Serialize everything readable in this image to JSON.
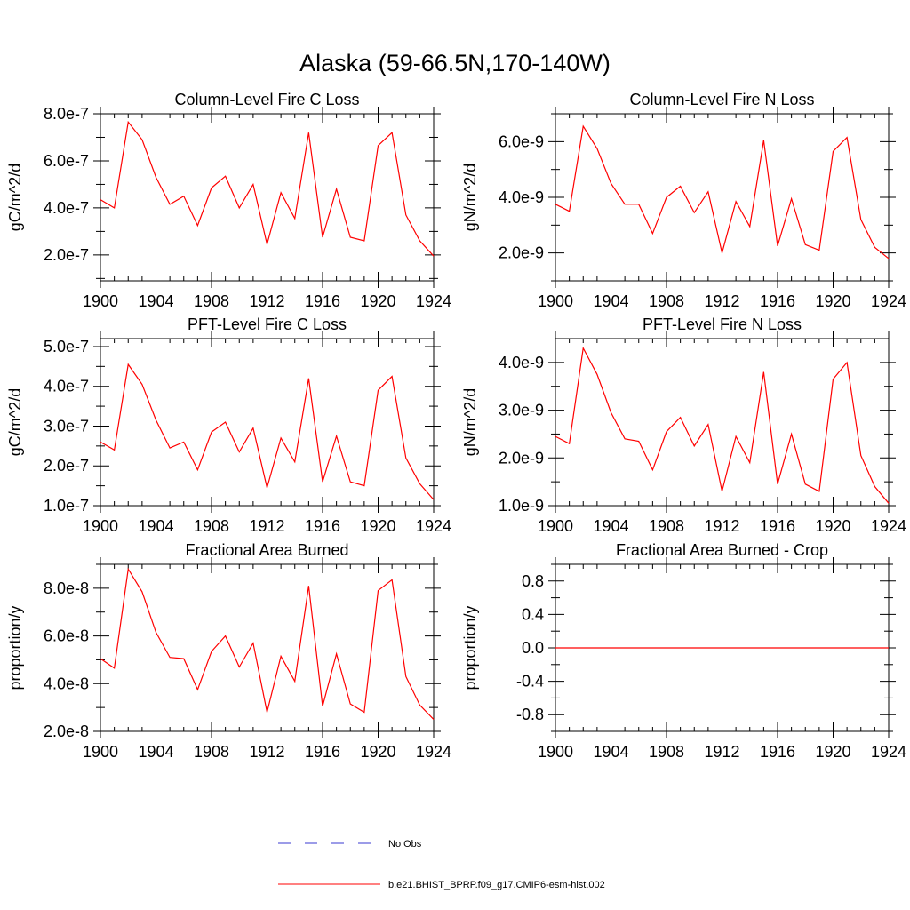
{
  "title": "Alaska (59-66.5N,170-140W)",
  "colors": {
    "series": "#ff0000",
    "obs": "#3a3ad0",
    "axis": "#000000"
  },
  "chart_data": [
    {
      "type": "line",
      "title": "Column-Level Fire C Loss",
      "ylabel": "gC/m^2/d",
      "xlabel": "",
      "xlim": [
        1900,
        1924
      ],
      "ylim": [
        9e-08,
        8e-07
      ],
      "xticks": [
        1900,
        1904,
        1908,
        1912,
        1916,
        1920,
        1924
      ],
      "xtick_labels": [
        "1900",
        "1904",
        "1908",
        "1912",
        "1916",
        "1920",
        "1924"
      ],
      "yticks": [
        2e-07,
        4e-07,
        6e-07,
        8e-07
      ],
      "ytick_labels": [
        "2.0e-7",
        "4.0e-7",
        "6.0e-7",
        "8.0e-7"
      ],
      "yminor": [
        1e-07,
        3e-07,
        5e-07,
        7e-07
      ],
      "x": [
        1900,
        1901,
        1902,
        1903,
        1904,
        1905,
        1906,
        1907,
        1908,
        1909,
        1910,
        1911,
        1912,
        1913,
        1914,
        1915,
        1916,
        1917,
        1918,
        1919,
        1920,
        1921,
        1922,
        1923,
        1924
      ],
      "values": [
        4.35e-07,
        4e-07,
        7.65e-07,
        6.9e-07,
        5.3e-07,
        4.15e-07,
        4.5e-07,
        3.25e-07,
        4.85e-07,
        5.35e-07,
        4e-07,
        5e-07,
        2.45e-07,
        4.65e-07,
        3.55e-07,
        7.2e-07,
        2.75e-07,
        4.8e-07,
        2.75e-07,
        2.6e-07,
        6.65e-07,
        7.2e-07,
        3.7e-07,
        2.6e-07,
        1.95e-07
      ]
    },
    {
      "type": "line",
      "title": "Column-Level Fire N Loss",
      "ylabel": "gN/m^2/d",
      "xlabel": "",
      "xlim": [
        1900,
        1924
      ],
      "ylim": [
        1e-09,
        7e-09
      ],
      "xticks": [
        1900,
        1904,
        1908,
        1912,
        1916,
        1920,
        1924
      ],
      "xtick_labels": [
        "1900",
        "1904",
        "1908",
        "1912",
        "1916",
        "1920",
        "1924"
      ],
      "yticks": [
        2e-09,
        4e-09,
        6e-09
      ],
      "ytick_labels": [
        "2.0e-9",
        "4.0e-9",
        "6.0e-9"
      ],
      "yminor": [
        1e-09,
        3e-09,
        5e-09,
        7e-09
      ],
      "x": [
        1900,
        1901,
        1902,
        1903,
        1904,
        1905,
        1906,
        1907,
        1908,
        1909,
        1910,
        1911,
        1912,
        1913,
        1914,
        1915,
        1916,
        1917,
        1918,
        1919,
        1920,
        1921,
        1922,
        1923,
        1924
      ],
      "values": [
        3.75e-09,
        3.5e-09,
        6.55e-09,
        5.75e-09,
        4.5e-09,
        3.75e-09,
        3.75e-09,
        2.7e-09,
        4e-09,
        4.4e-09,
        3.45e-09,
        4.2e-09,
        2e-09,
        3.85e-09,
        2.95e-09,
        6.05e-09,
        2.25e-09,
        3.95e-09,
        2.3e-09,
        2.1e-09,
        5.65e-09,
        6.15e-09,
        3.2e-09,
        2.2e-09,
        1.8e-09
      ]
    },
    {
      "type": "line",
      "title": "PFT-Level Fire C Loss",
      "ylabel": "gC/m^2/d",
      "xlabel": "",
      "xlim": [
        1900,
        1924
      ],
      "ylim": [
        1e-07,
        5.2e-07
      ],
      "xticks": [
        1900,
        1904,
        1908,
        1912,
        1916,
        1920,
        1924
      ],
      "xtick_labels": [
        "1900",
        "1904",
        "1908",
        "1912",
        "1916",
        "1920",
        "1924"
      ],
      "yticks": [
        1e-07,
        2e-07,
        3e-07,
        4e-07,
        5e-07
      ],
      "ytick_labels": [
        "1.0e-7",
        "2.0e-7",
        "3.0e-7",
        "4.0e-7",
        "5.0e-7"
      ],
      "yminor": [
        1.5e-07,
        2.5e-07,
        3.5e-07,
        4.5e-07
      ],
      "x": [
        1900,
        1901,
        1902,
        1903,
        1904,
        1905,
        1906,
        1907,
        1908,
        1909,
        1910,
        1911,
        1912,
        1913,
        1914,
        1915,
        1916,
        1917,
        1918,
        1919,
        1920,
        1921,
        1922,
        1923,
        1924
      ],
      "values": [
        2.6e-07,
        2.4e-07,
        4.55e-07,
        4.05e-07,
        3.15e-07,
        2.45e-07,
        2.6e-07,
        1.9e-07,
        2.85e-07,
        3.1e-07,
        2.35e-07,
        2.95e-07,
        1.45e-07,
        2.7e-07,
        2.1e-07,
        4.2e-07,
        1.6e-07,
        2.75e-07,
        1.6e-07,
        1.5e-07,
        3.9e-07,
        4.25e-07,
        2.2e-07,
        1.55e-07,
        1.15e-07
      ]
    },
    {
      "type": "line",
      "title": "PFT-Level Fire N Loss",
      "ylabel": "gN/m^2/d",
      "xlabel": "",
      "xlim": [
        1900,
        1924
      ],
      "ylim": [
        1e-09,
        4.5e-09
      ],
      "xticks": [
        1900,
        1904,
        1908,
        1912,
        1916,
        1920,
        1924
      ],
      "xtick_labels": [
        "1900",
        "1904",
        "1908",
        "1912",
        "1916",
        "1920",
        "1924"
      ],
      "yticks": [
        1e-09,
        2e-09,
        3e-09,
        4e-09
      ],
      "ytick_labels": [
        "1.0e-9",
        "2.0e-9",
        "3.0e-9",
        "4.0e-9"
      ],
      "yminor": [
        1.5e-09,
        2.5e-09,
        3.5e-09
      ],
      "x": [
        1900,
        1901,
        1902,
        1903,
        1904,
        1905,
        1906,
        1907,
        1908,
        1909,
        1910,
        1911,
        1912,
        1913,
        1914,
        1915,
        1916,
        1917,
        1918,
        1919,
        1920,
        1921,
        1922,
        1923,
        1924
      ],
      "values": [
        2.45e-09,
        2.3e-09,
        4.3e-09,
        3.75e-09,
        2.95e-09,
        2.4e-09,
        2.35e-09,
        1.75e-09,
        2.55e-09,
        2.85e-09,
        2.25e-09,
        2.7e-09,
        1.3e-09,
        2.45e-09,
        1.9e-09,
        3.8e-09,
        1.45e-09,
        2.5e-09,
        1.45e-09,
        1.3e-09,
        3.65e-09,
        4e-09,
        2.05e-09,
        1.4e-09,
        1.05e-09
      ]
    },
    {
      "type": "line",
      "title": "Fractional Area Burned",
      "ylabel": "proportion/y",
      "xlabel": "",
      "xlim": [
        1900,
        1924
      ],
      "ylim": [
        2e-08,
        9e-08
      ],
      "xticks": [
        1900,
        1904,
        1908,
        1912,
        1916,
        1920,
        1924
      ],
      "xtick_labels": [
        "1900",
        "1904",
        "1908",
        "1912",
        "1916",
        "1920",
        "1924"
      ],
      "yticks": [
        2e-08,
        4e-08,
        6e-08,
        8e-08
      ],
      "ytick_labels": [
        "2.0e-8",
        "4.0e-8",
        "6.0e-8",
        "8.0e-8"
      ],
      "yminor": [
        3e-08,
        5e-08,
        7e-08,
        9e-08
      ],
      "x": [
        1900,
        1901,
        1902,
        1903,
        1904,
        1905,
        1906,
        1907,
        1908,
        1909,
        1910,
        1911,
        1912,
        1913,
        1914,
        1915,
        1916,
        1917,
        1918,
        1919,
        1920,
        1921,
        1922,
        1923,
        1924
      ],
      "values": [
        5.05e-08,
        4.65e-08,
        8.8e-08,
        7.85e-08,
        6.15e-08,
        5.1e-08,
        5.05e-08,
        3.75e-08,
        5.35e-08,
        6e-08,
        4.7e-08,
        5.7e-08,
        2.8e-08,
        5.15e-08,
        4.1e-08,
        8.1e-08,
        3.05e-08,
        5.25e-08,
        3.15e-08,
        2.8e-08,
        7.9e-08,
        8.35e-08,
        4.3e-08,
        3.1e-08,
        2.5e-08
      ]
    },
    {
      "type": "line",
      "title": "Fractional Area Burned - Crop",
      "ylabel": "proportion/y",
      "xlabel": "",
      "xlim": [
        1900,
        1924
      ],
      "ylim": [
        -1.0,
        1.0
      ],
      "xticks": [
        1900,
        1904,
        1908,
        1912,
        1916,
        1920,
        1924
      ],
      "xtick_labels": [
        "1900",
        "1904",
        "1908",
        "1912",
        "1916",
        "1920",
        "1924"
      ],
      "yticks": [
        -0.8,
        -0.4,
        0.0,
        0.4,
        0.8
      ],
      "ytick_labels": [
        "-0.8",
        "-0.4",
        "0.0",
        "0.4",
        "0.8"
      ],
      "yminor": [
        -1.0,
        -0.6,
        -0.2,
        0.2,
        0.6,
        1.0
      ],
      "x": [
        1900,
        1901,
        1902,
        1903,
        1904,
        1905,
        1906,
        1907,
        1908,
        1909,
        1910,
        1911,
        1912,
        1913,
        1914,
        1915,
        1916,
        1917,
        1918,
        1919,
        1920,
        1921,
        1922,
        1923,
        1924
      ],
      "values": [
        0,
        0,
        0,
        0,
        0,
        0,
        0,
        0,
        0,
        0,
        0,
        0,
        0,
        0,
        0,
        0,
        0,
        0,
        0,
        0,
        0,
        0,
        0,
        0,
        0
      ]
    }
  ],
  "legend": {
    "position": "bottom-center",
    "items": [
      {
        "label": "No Obs",
        "style": "dashed"
      },
      {
        "label": "b.e21.BHIST_BPRP.f09_g17.CMIP6-esm-hist.002",
        "style": "solid"
      }
    ]
  }
}
